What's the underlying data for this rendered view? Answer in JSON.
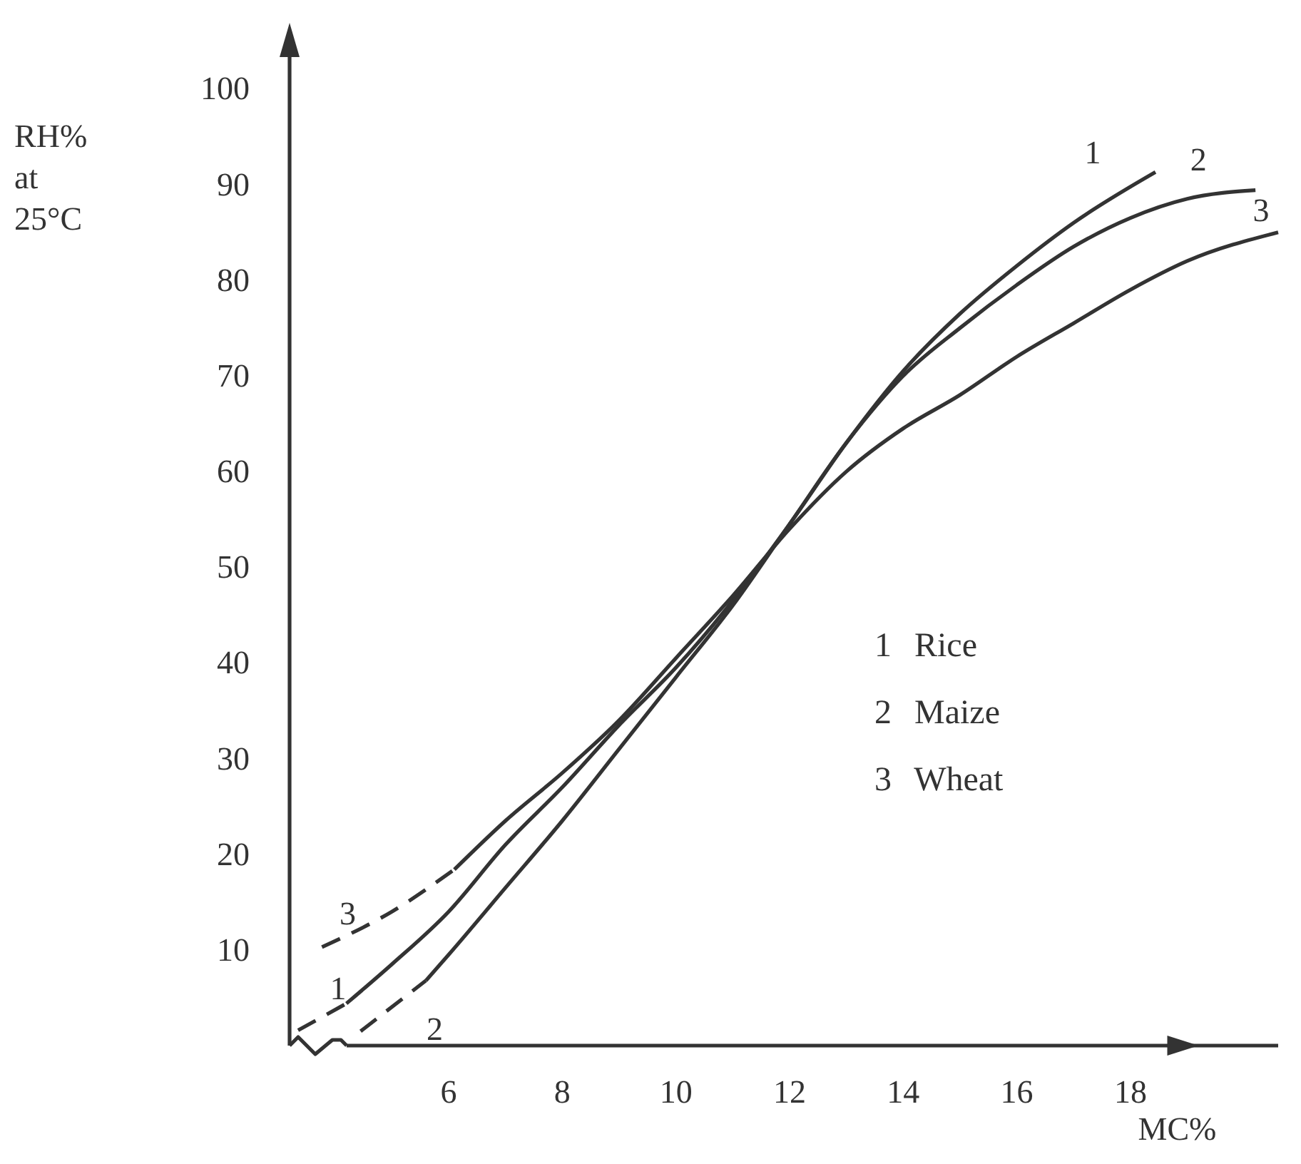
{
  "chart_data": {
    "type": "line",
    "xlabel": "MC%",
    "ylabel": "RH% at 25°C",
    "xlim": [
      3.2,
      20.6
    ],
    "ylim": [
      0,
      106
    ],
    "xticks": [
      6,
      8,
      10,
      12,
      14,
      16,
      18
    ],
    "yticks": [
      10,
      20,
      30,
      40,
      50,
      60,
      70,
      80,
      90,
      100
    ],
    "grid": false,
    "marker": "none",
    "annotations": [
      "1 Rice",
      "2 Maize",
      "3 Wheat"
    ],
    "series": [
      {
        "name": "1",
        "color": "#333333",
        "line_style": "dashed",
        "x": [
          3.35,
          4.2
        ],
        "values": [
          1.6,
          4.4
        ]
      },
      {
        "name": "1",
        "color": "#333333",
        "line_style": "solid",
        "x": [
          4.2,
          5,
          6,
          7,
          8,
          9,
          10,
          11,
          12,
          13,
          14,
          15,
          16,
          17,
          18.44
        ],
        "values": [
          4.4,
          8.5,
          14,
          21,
          27,
          33.5,
          39.5,
          46.5,
          54.5,
          63,
          70.5,
          76.5,
          81.5,
          86,
          91.3
        ]
      },
      {
        "name": "2",
        "color": "#333333",
        "line_style": "dashed",
        "x": [
          4.45,
          5.6
        ],
        "values": [
          1.5,
          6.8
        ]
      },
      {
        "name": "2",
        "color": "#333333",
        "line_style": "solid",
        "x": [
          5.6,
          6,
          7,
          8,
          9,
          10,
          11,
          12,
          13,
          14,
          15,
          16,
          17,
          18,
          19,
          20.2
        ],
        "values": [
          6.8,
          9.5,
          16.5,
          23.5,
          31,
          38.5,
          46,
          54.5,
          63,
          70,
          75,
          79.5,
          83.5,
          86.5,
          88.5,
          89.4
        ]
      },
      {
        "name": "3",
        "color": "#333333",
        "line_style": "dashed",
        "x": [
          3.77,
          5,
          6.1
        ],
        "values": [
          10.3,
          14,
          18.4
        ]
      },
      {
        "name": "3",
        "color": "#333333",
        "line_style": "solid",
        "x": [
          6.1,
          7,
          8,
          9,
          10,
          11,
          12,
          13,
          14,
          15,
          16,
          17,
          18,
          19,
          20.6
        ],
        "values": [
          18.4,
          23.5,
          28.5,
          34,
          40.5,
          47,
          54,
          60,
          64.5,
          68,
          72,
          75.5,
          79,
          82,
          85
        ]
      }
    ]
  }
}
